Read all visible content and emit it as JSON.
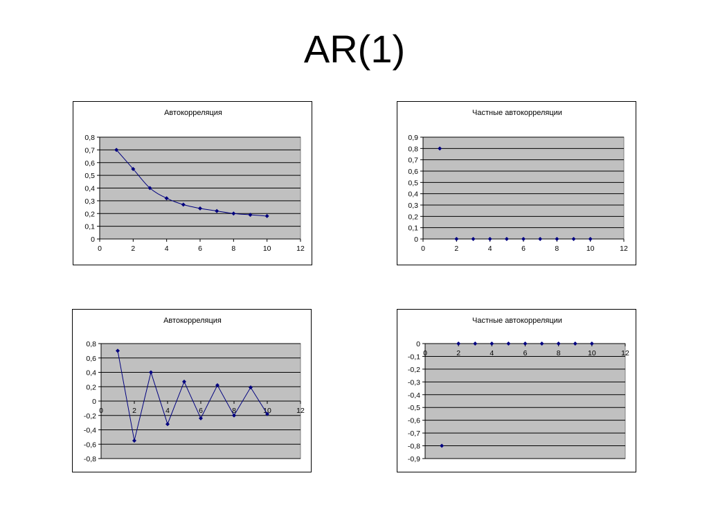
{
  "slide": {
    "title": "AR(1)"
  },
  "chart_data": [
    {
      "type": "line",
      "title": "Автокорреляция",
      "xlim": [
        0,
        12
      ],
      "ylim": [
        0,
        0.8
      ],
      "x_ticks": [
        0,
        2,
        4,
        6,
        8,
        10,
        12
      ],
      "x_tick_labels": [
        "0",
        "2",
        "4",
        "6",
        "8",
        "10",
        "12"
      ],
      "y_ticks": [
        0,
        0.1,
        0.2,
        0.3,
        0.4,
        0.5,
        0.6,
        0.7,
        0.8
      ],
      "y_tick_labels": [
        "0",
        "0,1",
        "0,2",
        "0,3",
        "0,4",
        "0,5",
        "0,6",
        "0,7",
        "0,8"
      ],
      "grid": true,
      "smooth": true,
      "connect": true,
      "plot_bg": "#c0c0c0",
      "marker_color": "#00007f",
      "line_color": "#00007f",
      "x": [
        1,
        2,
        3,
        4,
        5,
        6,
        7,
        8,
        9,
        10
      ],
      "y": [
        0.7,
        0.55,
        0.4,
        0.32,
        0.27,
        0.24,
        0.22,
        0.2,
        0.19,
        0.18
      ]
    },
    {
      "type": "scatter",
      "title": "Частные автокорреляции",
      "xlim": [
        0,
        12
      ],
      "ylim": [
        0,
        0.9
      ],
      "x_ticks": [
        0,
        2,
        4,
        6,
        8,
        10,
        12
      ],
      "x_tick_labels": [
        "0",
        "2",
        "4",
        "6",
        "8",
        "10",
        "12"
      ],
      "y_ticks": [
        0,
        0.1,
        0.2,
        0.3,
        0.4,
        0.5,
        0.6,
        0.7,
        0.8,
        0.9
      ],
      "y_tick_labels": [
        "0",
        "0,1",
        "0,2",
        "0,3",
        "0,4",
        "0,5",
        "0,6",
        "0,7",
        "0,8",
        "0,9"
      ],
      "grid": true,
      "smooth": false,
      "connect": false,
      "plot_bg": "#c0c0c0",
      "marker_color": "#00007f",
      "line_color": "#00007f",
      "x": [
        1,
        2,
        3,
        4,
        5,
        6,
        7,
        8,
        9,
        10
      ],
      "y": [
        0.8,
        0,
        0,
        0,
        0,
        0,
        0,
        0,
        0,
        0
      ]
    },
    {
      "type": "line",
      "title": "Автокорреляция",
      "xlim": [
        0,
        12
      ],
      "ylim": [
        -0.8,
        0.8
      ],
      "x_ticks": [
        0,
        2,
        4,
        6,
        8,
        10,
        12
      ],
      "x_tick_labels": [
        "0",
        "2",
        "4",
        "6",
        "8",
        "10",
        "12"
      ],
      "y_ticks": [
        -0.8,
        -0.6,
        -0.4,
        -0.2,
        0,
        0.2,
        0.4,
        0.6,
        0.8
      ],
      "y_tick_labels": [
        "-0,8",
        "-0,6",
        "-0,4",
        "-0,2",
        "0",
        "0,2",
        "0,4",
        "0,6",
        "0,8"
      ],
      "grid": true,
      "smooth": false,
      "connect": true,
      "plot_bg": "#c0c0c0",
      "marker_color": "#00007f",
      "line_color": "#00007f",
      "x": [
        1,
        2,
        3,
        4,
        5,
        6,
        7,
        8,
        9,
        10
      ],
      "y": [
        0.7,
        -0.55,
        0.4,
        -0.32,
        0.27,
        -0.24,
        0.22,
        -0.2,
        0.19,
        -0.18
      ]
    },
    {
      "type": "scatter",
      "title": "Частные автокорреляции",
      "xlim": [
        0,
        12
      ],
      "ylim": [
        -0.9,
        0
      ],
      "x_ticks": [
        0,
        2,
        4,
        6,
        8,
        10,
        12
      ],
      "x_tick_labels": [
        "0",
        "2",
        "4",
        "6",
        "8",
        "10",
        "12"
      ],
      "y_ticks": [
        -0.9,
        -0.8,
        -0.7,
        -0.6,
        -0.5,
        -0.4,
        -0.3,
        -0.2,
        -0.1,
        0
      ],
      "y_tick_labels": [
        "-0,9",
        "-0,8",
        "-0,7",
        "-0,6",
        "-0,5",
        "-0,4",
        "-0,3",
        "-0,2",
        "-0,1",
        "0"
      ],
      "grid": true,
      "smooth": false,
      "connect": false,
      "plot_bg": "#c0c0c0",
      "marker_color": "#00007f",
      "line_color": "#00007f",
      "x": [
        1,
        2,
        3,
        4,
        5,
        6,
        7,
        8,
        9,
        10
      ],
      "y": [
        -0.8,
        0,
        0,
        0,
        0,
        0,
        0,
        0,
        0,
        0
      ]
    }
  ]
}
